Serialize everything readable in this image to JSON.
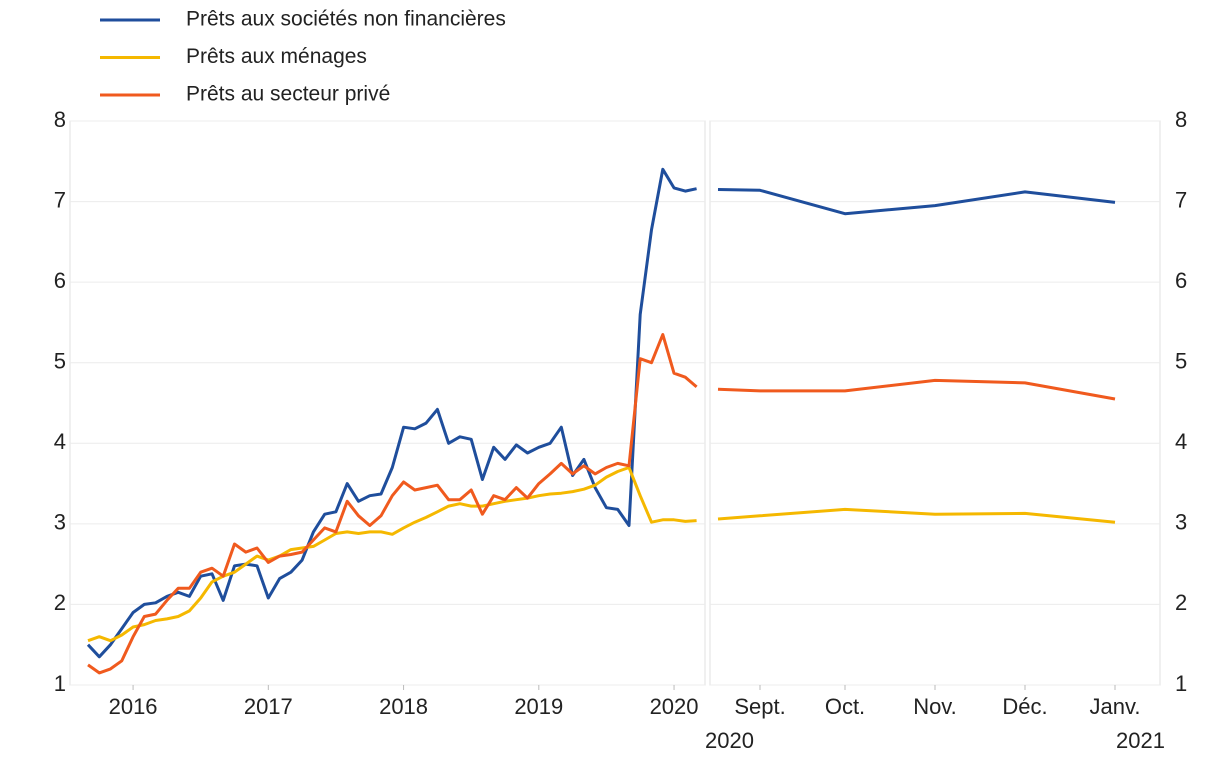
{
  "chart_data": [
    {
      "type": "line",
      "categories": [
        null,
        null,
        null,
        null,
        "2016",
        null,
        null,
        null,
        null,
        null,
        null,
        null,
        null,
        null,
        null,
        null,
        "2017",
        null,
        null,
        null,
        null,
        null,
        null,
        null,
        null,
        null,
        null,
        null,
        "2018",
        null,
        null,
        null,
        null,
        null,
        null,
        null,
        null,
        null,
        null,
        null,
        "2019",
        null,
        null,
        null,
        null,
        null,
        null,
        null,
        null,
        null,
        null,
        null,
        "2020",
        null,
        null
      ],
      "series": [
        {
          "name": "Prêts aux sociétés non financières",
          "color": "#1f4e9c",
          "values": [
            1.5,
            1.35,
            1.5,
            1.7,
            1.9,
            2.0,
            2.02,
            2.1,
            2.15,
            2.1,
            2.35,
            2.38,
            2.05,
            2.48,
            2.5,
            2.48,
            2.08,
            2.32,
            2.4,
            2.55,
            2.9,
            3.12,
            3.15,
            3.5,
            3.28,
            3.35,
            3.37,
            3.7,
            4.2,
            4.18,
            4.25,
            4.42,
            4.0,
            4.08,
            4.05,
            3.55,
            3.95,
            3.8,
            3.98,
            3.88,
            3.95,
            4.0,
            4.2,
            3.6,
            3.8,
            3.45,
            3.2,
            3.18,
            2.98,
            5.6,
            6.65,
            7.4,
            7.17,
            7.13,
            7.16
          ]
        },
        {
          "name": "Prêts aux ménages",
          "color": "#f5b800",
          "values": [
            1.55,
            1.6,
            1.55,
            1.62,
            1.72,
            1.75,
            1.8,
            1.82,
            1.85,
            1.92,
            2.08,
            2.28,
            2.35,
            2.4,
            2.5,
            2.6,
            2.55,
            2.6,
            2.68,
            2.7,
            2.72,
            2.8,
            2.88,
            2.9,
            2.88,
            2.9,
            2.9,
            2.87,
            2.95,
            3.02,
            3.08,
            3.15,
            3.22,
            3.25,
            3.22,
            3.22,
            3.25,
            3.28,
            3.3,
            3.32,
            3.35,
            3.37,
            3.38,
            3.4,
            3.43,
            3.48,
            3.58,
            3.65,
            3.7,
            3.35,
            3.02,
            3.05,
            3.05,
            3.03,
            3.04
          ]
        },
        {
          "name": "Prêts au secteur privé",
          "color": "#f05a1e",
          "values": [
            1.25,
            1.15,
            1.2,
            1.3,
            1.6,
            1.85,
            1.88,
            2.05,
            2.2,
            2.2,
            2.4,
            2.45,
            2.35,
            2.75,
            2.65,
            2.7,
            2.52,
            2.6,
            2.62,
            2.65,
            2.8,
            2.95,
            2.9,
            3.28,
            3.1,
            2.98,
            3.1,
            3.35,
            3.52,
            3.42,
            3.45,
            3.48,
            3.3,
            3.3,
            3.42,
            3.12,
            3.35,
            3.3,
            3.45,
            3.32,
            3.5,
            3.62,
            3.75,
            3.62,
            3.72,
            3.62,
            3.7,
            3.75,
            3.72,
            5.05,
            5.0,
            5.35,
            4.87,
            4.82,
            4.7
          ]
        }
      ],
      "ylim": [
        1,
        8
      ],
      "yticks": [
        1,
        2,
        3,
        4,
        5,
        6,
        7,
        8
      ],
      "grid": true,
      "legend": "top-left"
    },
    {
      "type": "line",
      "categories": [
        null,
        "Sept.",
        "Oct.",
        "Nov.",
        "Déc.",
        "Janv."
      ],
      "year_labels": [
        "2020",
        "2021"
      ],
      "series": [
        {
          "color": "#1f4e9c",
          "values": [
            7.15,
            7.14,
            6.85,
            6.95,
            7.12,
            6.99
          ]
        },
        {
          "color": "#f5b800",
          "values": [
            3.06,
            3.1,
            3.18,
            3.12,
            3.13,
            3.02
          ]
        },
        {
          "color": "#f05a1e",
          "values": [
            4.67,
            4.65,
            4.65,
            4.78,
            4.75,
            4.55
          ]
        }
      ],
      "ylim": [
        1,
        8
      ],
      "yticks": [
        1,
        2,
        3,
        4,
        5,
        6,
        7,
        8
      ],
      "grid": true
    }
  ]
}
